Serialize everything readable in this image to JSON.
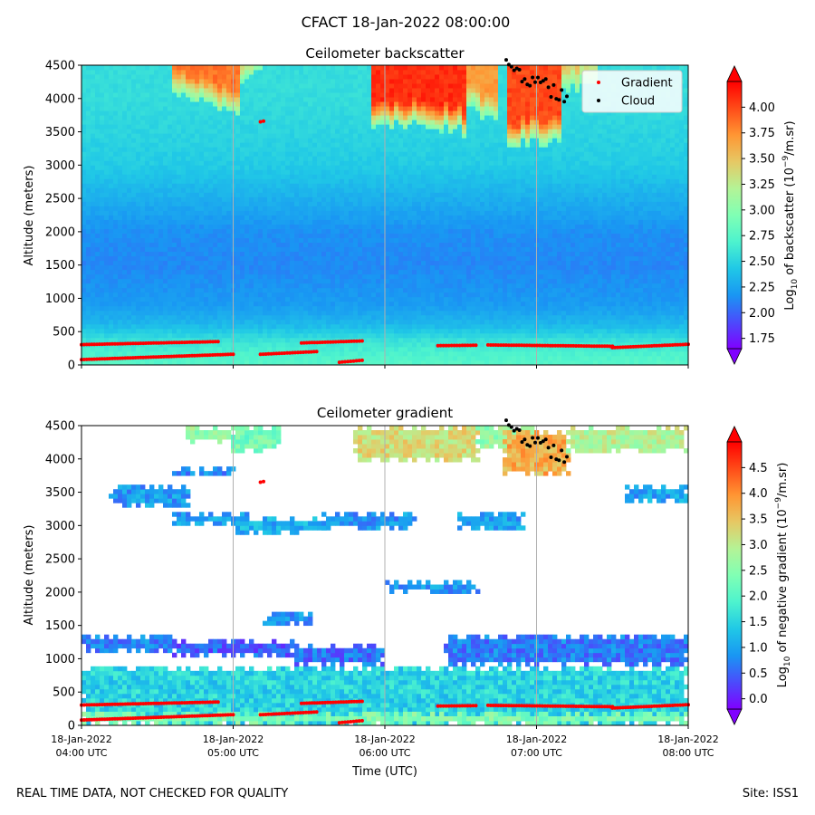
{
  "figure": {
    "suptitle": "CFACT 18-Jan-2022 08:00:00",
    "footer_left": "REAL TIME DATA, NOT CHECKED FOR QUALITY",
    "footer_right": "Site: ISS1",
    "xlabel": "Time (UTC)"
  },
  "colors": {
    "rainbow": [
      "#8000ff",
      "#4b4bfc",
      "#1996f3",
      "#20c8e6",
      "#4df3ce",
      "#80ffb4",
      "#b4f396",
      "#e6c864",
      "#ff9633",
      "#ff4b18",
      "#ff0000"
    ],
    "under": "#8000ff",
    "over": "#ff0000",
    "gradient_marker": "#ff0000",
    "cloud_marker": "#000000",
    "grid": "#b0b0b0"
  },
  "chart_data": [
    {
      "type": "heatmap",
      "title": "Ceilometer backscatter",
      "xlabel": "",
      "ylabel": "Altitude (meters)",
      "x_ticks": [
        {
          "date": "18-Jan-2022",
          "time": "04:00 UTC",
          "hour": 4
        },
        {
          "date": "18-Jan-2022",
          "time": "05:00 UTC",
          "hour": 5
        },
        {
          "date": "18-Jan-2022",
          "time": "06:00 UTC",
          "hour": 6
        },
        {
          "date": "18-Jan-2022",
          "time": "07:00 UTC",
          "hour": 7
        },
        {
          "date": "18-Jan-2022",
          "time": "08:00 UTC",
          "hour": 8
        }
      ],
      "x_tick_labels_shown": false,
      "xlim_hours": [
        4,
        8
      ],
      "ylim": [
        0,
        4500
      ],
      "y_ticks": [
        0,
        500,
        1000,
        1500,
        2000,
        2500,
        3000,
        3500,
        4000,
        4500
      ],
      "vertical_grid": true,
      "colorbar": {
        "label": "Log10 of backscatter (10^-9/m.sr)",
        "range": [
          1.65,
          4.25
        ],
        "ticks": [
          "1.75",
          "2.00",
          "2.25",
          "2.50",
          "2.75",
          "3.00",
          "3.25",
          "3.50",
          "3.75",
          "4.00"
        ]
      },
      "legend": {
        "placement": "top-right",
        "entries": [
          {
            "label": "Gradient",
            "color": "#ff0000"
          },
          {
            "label": "Cloud",
            "color": "#000000"
          }
        ]
      },
      "field": {
        "base_profile": [
          [
            0,
            2.75
          ],
          [
            150,
            2.7
          ],
          [
            350,
            2.6
          ],
          [
            600,
            2.35
          ],
          [
            900,
            2.2
          ],
          [
            1500,
            2.12
          ],
          [
            2000,
            2.15
          ],
          [
            2500,
            2.3
          ],
          [
            3000,
            2.45
          ],
          [
            3500,
            2.5
          ],
          [
            4000,
            2.55
          ],
          [
            4500,
            2.55
          ]
        ],
        "features": [
          {
            "t": [
              4.6,
              5.05
            ],
            "base": [
              4100,
              3750
            ],
            "value": 3.85
          },
          {
            "t": [
              5.05,
              5.25
            ],
            "base": [
              4300,
              4500
            ],
            "value": 3.7
          },
          {
            "t": [
              5.9,
              6.55
            ],
            "base": [
              3650,
              3500
            ],
            "value": 4.1
          },
          {
            "t": [
              6.55,
              6.75
            ],
            "base": [
              3900,
              3600
            ],
            "value": 3.7
          },
          {
            "t": [
              6.8,
              7.15
            ],
            "base": [
              3300,
              3400
            ],
            "value": 4.0
          },
          {
            "t": [
              7.15,
              7.4
            ],
            "base": [
              4100,
              4200
            ],
            "value": 3.5
          }
        ]
      },
      "gradient_points": [
        {
          "t": [
            4.0,
            5.0
          ],
          "alt": [
            80,
            160
          ]
        },
        {
          "t": [
            4.0,
            4.9
          ],
          "alt": [
            305,
            350
          ]
        },
        {
          "t": [
            5.18,
            5.55
          ],
          "alt": [
            160,
            200
          ]
        },
        {
          "t": [
            5.45,
            5.85
          ],
          "alt": [
            330,
            360
          ]
        },
        {
          "t": [
            5.7,
            5.85
          ],
          "alt": [
            40,
            70
          ]
        },
        {
          "t": [
            6.35,
            6.6
          ],
          "alt": [
            290,
            295
          ]
        },
        {
          "t": [
            6.68,
            7.5
          ],
          "alt": [
            300,
            280
          ]
        },
        {
          "t": [
            7.5,
            8.0
          ],
          "alt": [
            260,
            310
          ]
        },
        {
          "t": [
            5.18,
            5.2
          ],
          "alt": [
            3650,
            3660
          ]
        }
      ],
      "cloud_points": [
        {
          "t": [
            6.8,
            7.2
          ],
          "alt": [
            4500,
            4000
          ]
        }
      ]
    },
    {
      "type": "heatmap",
      "title": "Ceilometer gradient",
      "xlabel": "Time (UTC)",
      "ylabel": "Altitude (meters)",
      "x_ticks": [
        {
          "date": "18-Jan-2022",
          "time": "04:00 UTC",
          "hour": 4
        },
        {
          "date": "18-Jan-2022",
          "time": "05:00 UTC",
          "hour": 5
        },
        {
          "date": "18-Jan-2022",
          "time": "06:00 UTC",
          "hour": 6
        },
        {
          "date": "18-Jan-2022",
          "time": "07:00 UTC",
          "hour": 7
        },
        {
          "date": "18-Jan-2022",
          "time": "08:00 UTC",
          "hour": 8
        }
      ],
      "x_tick_labels_shown": true,
      "xlim_hours": [
        4,
        8
      ],
      "ylim": [
        0,
        4500
      ],
      "y_ticks": [
        0,
        500,
        1000,
        1500,
        2000,
        2500,
        3000,
        3500,
        4000,
        4500
      ],
      "vertical_grid": true,
      "colorbar": {
        "label": "Log10 of negative gradient (10^-9/m.sr)",
        "range": [
          -0.2,
          5.0
        ],
        "ticks": [
          "0.0",
          "0.5",
          "1.0",
          "1.5",
          "2.0",
          "2.5",
          "3.0",
          "3.5",
          "4.0",
          "4.5"
        ]
      },
      "layers": [
        {
          "t": [
            4.0,
            8.0
          ],
          "alt": [
            0,
            850
          ],
          "value": 1.5
        },
        {
          "t": [
            4.0,
            8.0
          ],
          "alt": [
            0,
            150
          ],
          "value": 2.4
        },
        {
          "t": [
            4.0,
            4.6
          ],
          "alt": [
            1100,
            1350
          ],
          "value": 0.7
        },
        {
          "t": [
            4.6,
            5.4
          ],
          "alt": [
            1050,
            1250
          ],
          "value": 0.5
        },
        {
          "t": [
            5.4,
            6.0
          ],
          "alt": [
            950,
            1200
          ],
          "value": 0.6
        },
        {
          "t": [
            6.4,
            8.0
          ],
          "alt": [
            950,
            1350
          ],
          "value": 0.7
        },
        {
          "t": [
            4.2,
            4.7
          ],
          "alt": [
            3300,
            3550
          ],
          "value": 0.9
        },
        {
          "t": [
            4.6,
            5.1
          ],
          "alt": [
            3000,
            3200
          ],
          "value": 0.9
        },
        {
          "t": [
            5.0,
            5.6
          ],
          "alt": [
            2900,
            3100
          ],
          "value": 1.1
        },
        {
          "t": [
            5.6,
            6.2
          ],
          "alt": [
            2950,
            3150
          ],
          "value": 0.9
        },
        {
          "t": [
            6.5,
            6.9
          ],
          "alt": [
            2950,
            3150
          ],
          "value": 1.0
        },
        {
          "t": [
            7.6,
            8.0
          ],
          "alt": [
            3400,
            3600
          ],
          "value": 1.0
        },
        {
          "t": [
            4.6,
            5.0
          ],
          "alt": [
            3750,
            3850
          ],
          "value": 0.8
        },
        {
          "t": [
            5.2,
            5.5
          ],
          "alt": [
            1550,
            1700
          ],
          "value": 0.9
        },
        {
          "t": [
            6.0,
            6.6
          ],
          "alt": [
            2000,
            2150
          ],
          "value": 0.9
        },
        {
          "t": [
            4.7,
            5.0
          ],
          "alt": [
            4250,
            4500
          ],
          "value": 2.6
        },
        {
          "t": [
            5.0,
            5.3
          ],
          "alt": [
            4100,
            4500
          ],
          "value": 2.3
        },
        {
          "t": [
            5.8,
            6.6
          ],
          "alt": [
            4000,
            4500
          ],
          "value": 3.2
        },
        {
          "t": [
            6.6,
            7.0
          ],
          "alt": [
            4200,
            4500
          ],
          "value": 2.6
        },
        {
          "t": [
            6.8,
            7.2
          ],
          "alt": [
            3800,
            4400
          ],
          "value": 3.7
        },
        {
          "t": [
            7.2,
            8.0
          ],
          "alt": [
            4100,
            4500
          ],
          "value": 2.9
        }
      ],
      "gradient_points": [
        {
          "t": [
            4.0,
            5.0
          ],
          "alt": [
            80,
            160
          ]
        },
        {
          "t": [
            4.0,
            4.9
          ],
          "alt": [
            305,
            350
          ]
        },
        {
          "t": [
            5.18,
            5.55
          ],
          "alt": [
            160,
            200
          ]
        },
        {
          "t": [
            5.45,
            5.85
          ],
          "alt": [
            330,
            360
          ]
        },
        {
          "t": [
            5.7,
            5.85
          ],
          "alt": [
            40,
            70
          ]
        },
        {
          "t": [
            6.35,
            6.6
          ],
          "alt": [
            290,
            295
          ]
        },
        {
          "t": [
            6.68,
            7.5
          ],
          "alt": [
            300,
            280
          ]
        },
        {
          "t": [
            7.5,
            8.0
          ],
          "alt": [
            260,
            310
          ]
        },
        {
          "t": [
            5.18,
            5.2
          ],
          "alt": [
            3650,
            3660
          ]
        }
      ],
      "cloud_points": [
        {
          "t": [
            6.8,
            7.2
          ],
          "alt": [
            4500,
            4000
          ]
        }
      ]
    }
  ]
}
